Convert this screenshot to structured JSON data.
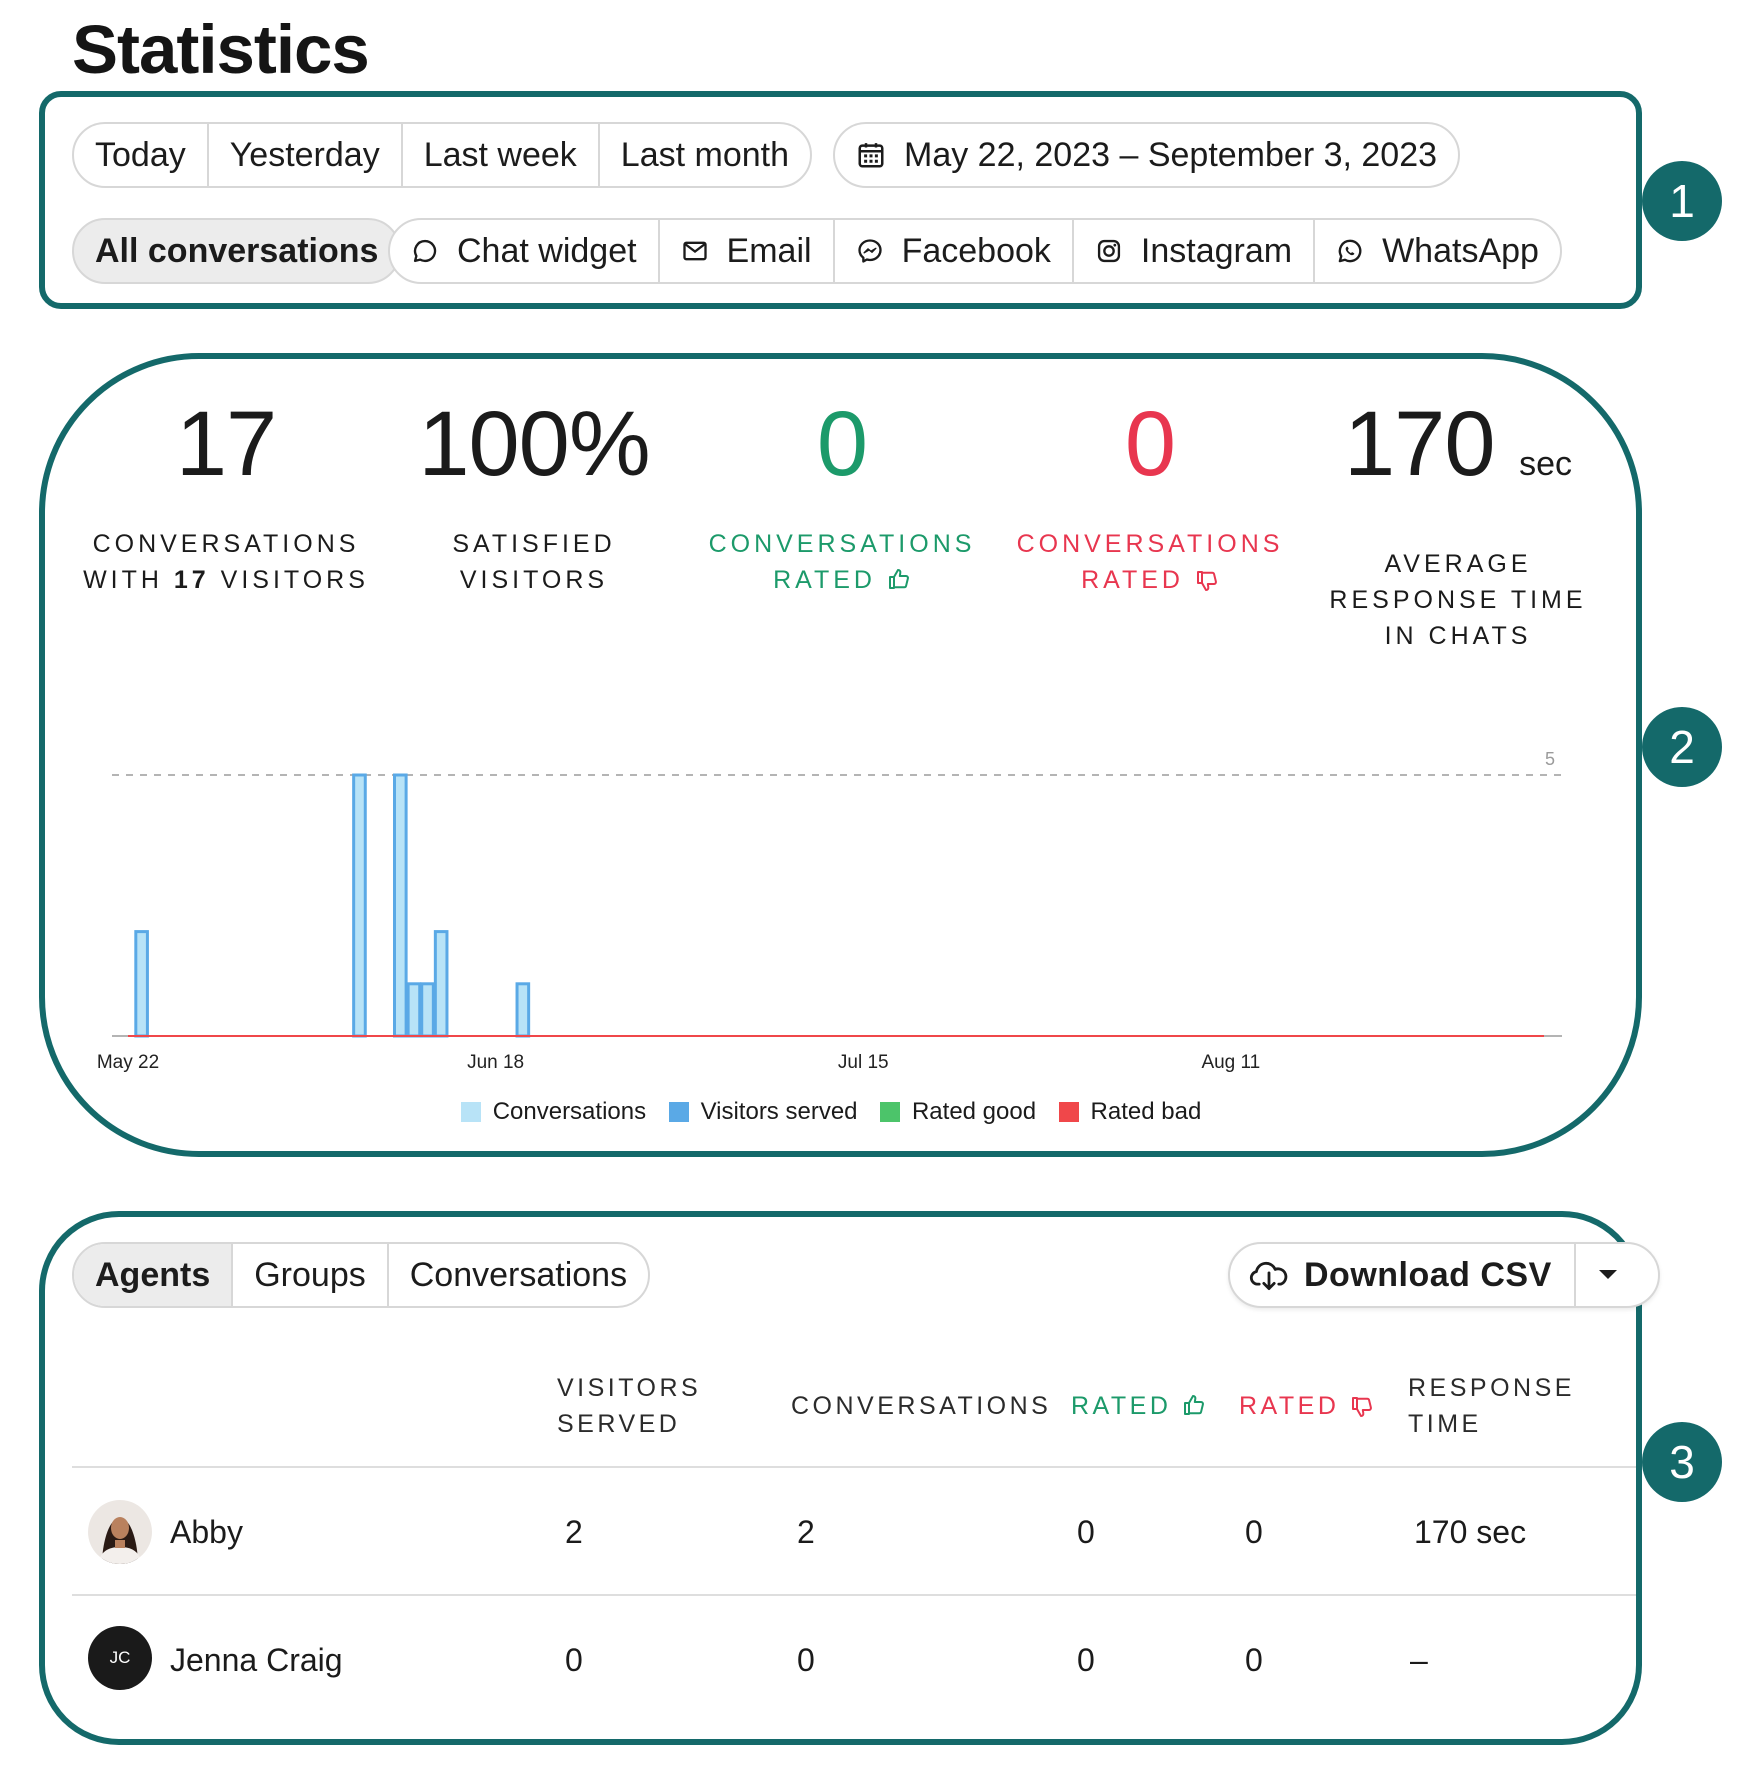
{
  "page": {
    "title": "Statistics"
  },
  "markers": [
    "1",
    "2",
    "3"
  ],
  "filters": {
    "periods": [
      "Today",
      "Yesterday",
      "Last week",
      "Last month"
    ],
    "date_range": "May 22, 2023 – September 3, 2023",
    "channels": [
      {
        "label": "All conversations",
        "icon": "none",
        "active": true
      },
      {
        "label": "Chat widget",
        "icon": "chat-bubble-icon"
      },
      {
        "label": "Email",
        "icon": "envelope-icon"
      },
      {
        "label": "Facebook",
        "icon": "messenger-icon"
      },
      {
        "label": "Instagram",
        "icon": "instagram-icon"
      },
      {
        "label": "WhatsApp",
        "icon": "whatsapp-icon"
      }
    ]
  },
  "kpis": [
    {
      "value": "17",
      "label_pre": "CONVERSATIONS",
      "label_line2_pre": "WITH ",
      "label_bold": "17",
      "label_line2_post": " VISITORS"
    },
    {
      "value": "100%",
      "label_1": "SATISFIED",
      "label_2": "VISITORS"
    },
    {
      "value": "0",
      "label_1": "CONVERSATIONS",
      "label_2": "RATED",
      "color": "#1c9a6a",
      "icon": "thumbs-up-icon"
    },
    {
      "value": "0",
      "label_1": "CONVERSATIONS",
      "label_2": "RATED",
      "color": "#e8364f",
      "icon": "thumbs-down-icon"
    },
    {
      "value": "170",
      "unit": "sec",
      "label_1": "AVERAGE",
      "label_2": "RESPONSE TIME",
      "label_3": "IN CHATS"
    }
  ],
  "chart_data": {
    "type": "bar",
    "x_ticks": [
      "May 22",
      "Jun 18",
      "Jul 15",
      "Aug 11"
    ],
    "x_range": [
      "2023-05-22",
      "2023-09-03"
    ],
    "y_range": [
      0,
      5
    ],
    "y_gridline": 5,
    "y_gridline_label": "5",
    "series": [
      {
        "name": "Conversations",
        "color": "#b8e3f7",
        "points": [
          [
            "2023-05-23",
            2
          ],
          [
            "2023-06-08",
            5
          ],
          [
            "2023-06-11",
            5
          ],
          [
            "2023-06-12",
            1
          ],
          [
            "2023-06-13",
            1
          ],
          [
            "2023-06-14",
            2
          ],
          [
            "2023-06-20",
            1
          ]
        ]
      },
      {
        "name": "Visitors served",
        "color": "#5aa9e6",
        "points": [
          [
            "2023-05-23",
            2
          ],
          [
            "2023-06-08",
            5
          ],
          [
            "2023-06-11",
            5
          ],
          [
            "2023-06-12",
            1
          ],
          [
            "2023-06-13",
            1
          ],
          [
            "2023-06-14",
            2
          ],
          [
            "2023-06-20",
            1
          ]
        ]
      },
      {
        "name": "Rated good",
        "color": "#4cc46a",
        "points": []
      },
      {
        "name": "Rated bad",
        "color": "#f0474a",
        "points": []
      }
    ],
    "grid": "dashed at 5",
    "legend": "bottom-center"
  },
  "table": {
    "tabs": [
      {
        "label": "Agents",
        "active": true
      },
      {
        "label": "Groups"
      },
      {
        "label": "Conversations"
      }
    ],
    "download_label": "Download CSV",
    "headers": {
      "visitors_1": "VISITORS",
      "visitors_2": "SERVED",
      "conversations": "CONVERSATIONS",
      "rated_good": "RATED",
      "rated_bad": "RATED",
      "response_1": "RESPONSE",
      "response_2": "TIME"
    },
    "rows": [
      {
        "name": "Abby",
        "avatar": "photo",
        "visitors": "2",
        "conversations": "2",
        "rated_good": "0",
        "rated_bad": "0",
        "response": "170 sec"
      },
      {
        "name": "Jenna Craig",
        "avatar": "JC",
        "visitors": "0",
        "conversations": "0",
        "rated_good": "0",
        "rated_bad": "0",
        "response": "–"
      }
    ]
  }
}
